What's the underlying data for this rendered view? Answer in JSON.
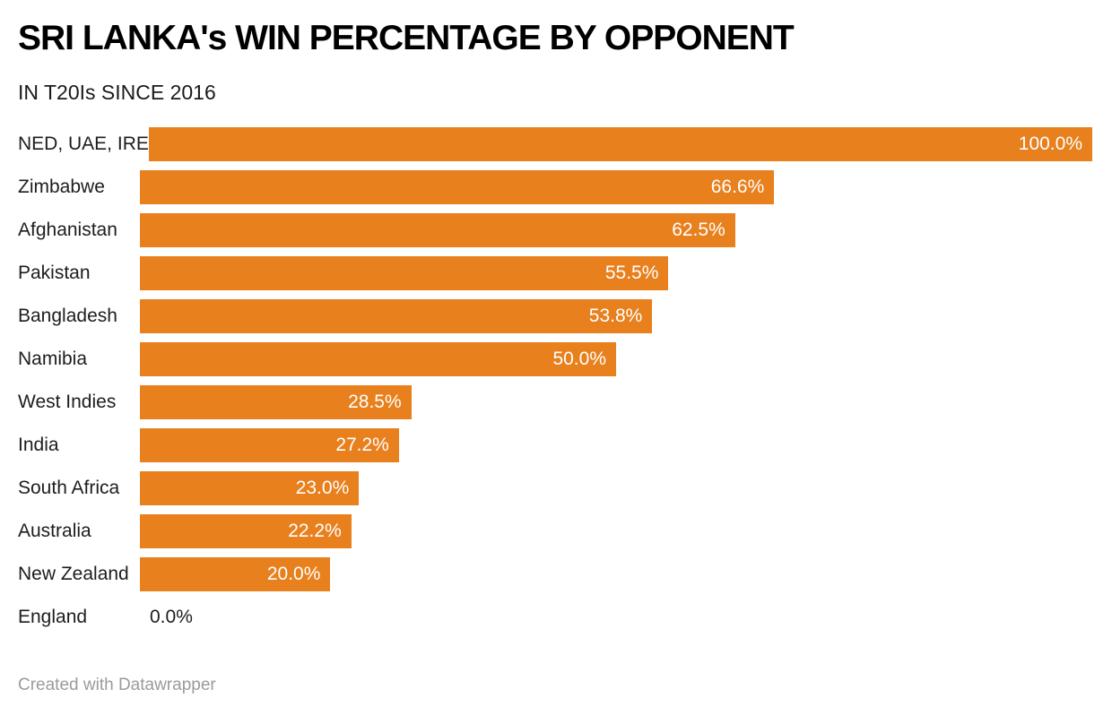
{
  "header": {
    "title": "SRI LANKA's WIN PERCENTAGE BY OPPONENT",
    "subtitle": "IN T20Is SINCE 2016"
  },
  "footer": {
    "credit": "Created with Datawrapper"
  },
  "colors": {
    "bar": "#e8801e",
    "value_label_inside": "#ffffff",
    "value_label_outside": "#1d1d1d",
    "category_label": "#1d1d1d",
    "title": "#000000",
    "footer_text": "#9b9b9b",
    "background": "#ffffff"
  },
  "chart_data": {
    "type": "bar",
    "orientation": "horizontal",
    "title": "SRI LANKA's WIN PERCENTAGE BY OPPONENT",
    "subtitle": "IN T20Is SINCE 2016",
    "xlabel": "",
    "ylabel": "",
    "xlim": [
      0,
      100
    ],
    "grid": false,
    "legend": "none",
    "categories": [
      "NED, UAE, IRE",
      "Zimbabwe",
      "Afghanistan",
      "Pakistan",
      "Bangladesh",
      "Namibia",
      "West Indies",
      "India",
      "South Africa",
      "Australia",
      "New Zealand",
      "England"
    ],
    "values": [
      100.0,
      66.6,
      62.5,
      55.5,
      53.8,
      50.0,
      28.5,
      27.2,
      23.0,
      22.2,
      20.0,
      0.0
    ],
    "value_labels": [
      "100.0%",
      "66.6%",
      "62.5%",
      "55.5%",
      "53.8%",
      "50.0%",
      "28.5%",
      "27.2%",
      "23.0%",
      "22.2%",
      "20.0%",
      "0.0%"
    ]
  }
}
